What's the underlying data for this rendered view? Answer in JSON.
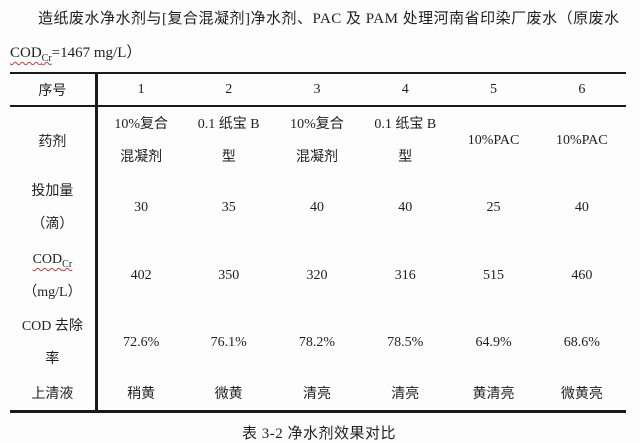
{
  "title": {
    "line1": "造纸废水净水剂与[复合混凝剂]净水剂、PAC 及 PAM 处理河南省印染厂废水（原废水",
    "cod_prefix": "COD",
    "cod_sub": "Cr",
    "cod_value": "=1467 mg/L）"
  },
  "table": {
    "header": {
      "row_label": "序号",
      "columns": [
        "1",
        "2",
        "3",
        "4",
        "5",
        "6"
      ]
    },
    "reagent_row": {
      "label": "药剂",
      "cells": [
        {
          "line1": "10%复合",
          "line2": "混凝剂"
        },
        {
          "line1": "0.1 纸宝 B",
          "line2": "型"
        },
        {
          "line1": "10%复合",
          "line2": "混凝剂"
        },
        {
          "line1": "0.1 纸宝 B",
          "line2": "型"
        },
        {
          "line1": "10%PAC",
          "line2": ""
        },
        {
          "line1": "10%PAC",
          "line2": ""
        }
      ]
    },
    "dosage_row": {
      "label_line1": "投加量",
      "label_line2": "（滴）",
      "values": [
        "30",
        "35",
        "40",
        "40",
        "25",
        "40"
      ]
    },
    "cod_row": {
      "label_prefix": "COD",
      "label_sub": "Cr",
      "label_line2": "（mg/L）",
      "values": [
        "402",
        "350",
        "320",
        "316",
        "515",
        "460"
      ]
    },
    "removal_row": {
      "label_line1": "COD 去除",
      "label_line2": "率",
      "values": [
        "72.6%",
        "76.1%",
        "78.2%",
        "78.5%",
        "64.9%",
        "68.6%"
      ]
    },
    "supernatant_row": {
      "label": "上清液",
      "values": [
        "稍黄",
        "微黄",
        "清亮",
        "清亮",
        "黄清亮",
        "微黄亮"
      ]
    }
  },
  "caption": "表 3-2 净水剂效果对比",
  "colors": {
    "text": "#1f1f1f",
    "table_lines": "#1a1a1a",
    "spellcheck_underline": "#c23b3b",
    "background": "#fdfdfd"
  }
}
